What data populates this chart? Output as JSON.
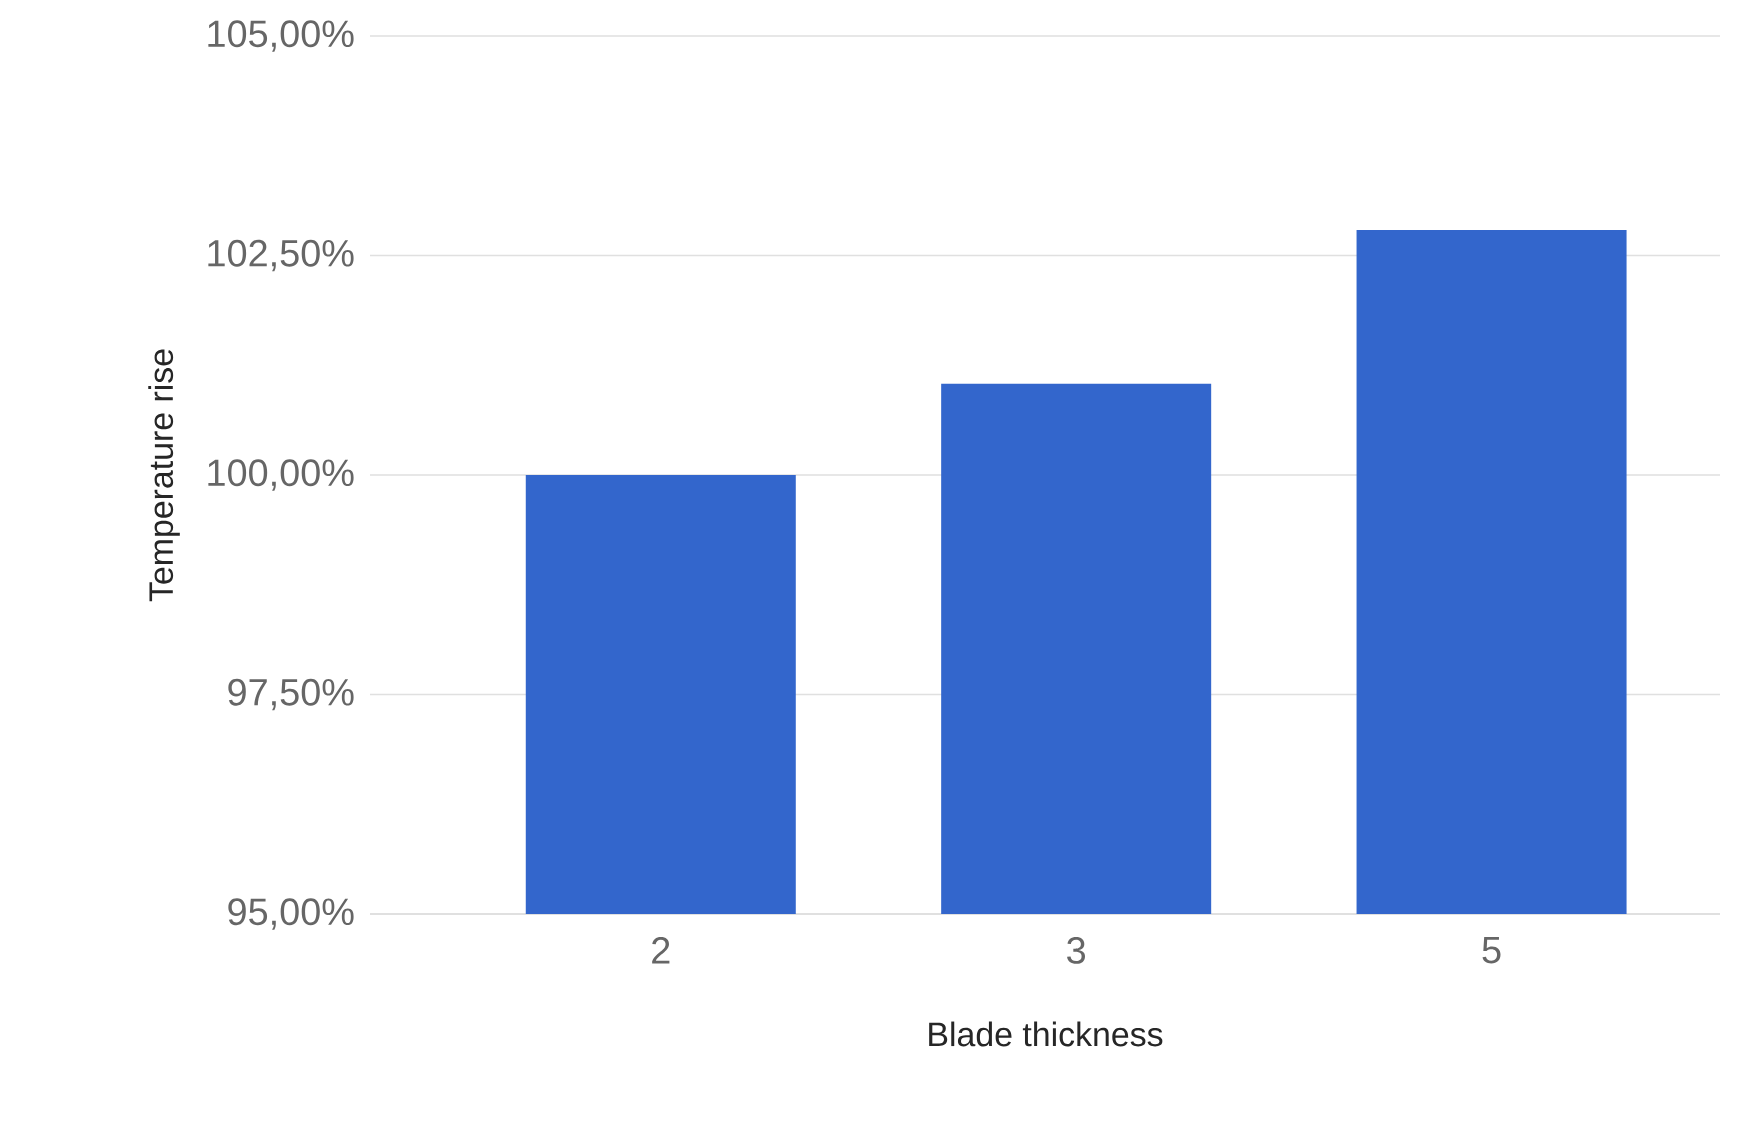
{
  "chart_data": {
    "type": "bar",
    "xlabel": "Blade thickness",
    "ylabel": "Temperature rise",
    "categories": [
      "2",
      "3",
      "5"
    ],
    "values": [
      100.0,
      101.04,
      102.79
    ],
    "color": "#3366cc",
    "ylim": [
      95,
      105
    ],
    "yticks": [
      {
        "value": 95,
        "label": "95,00%"
      },
      {
        "value": 97.5,
        "label": "97,50%"
      },
      {
        "value": 100,
        "label": "100,00%"
      },
      {
        "value": 102.5,
        "label": "102,50%"
      },
      {
        "value": 105,
        "label": "105,00%"
      }
    ],
    "grid": "y"
  }
}
